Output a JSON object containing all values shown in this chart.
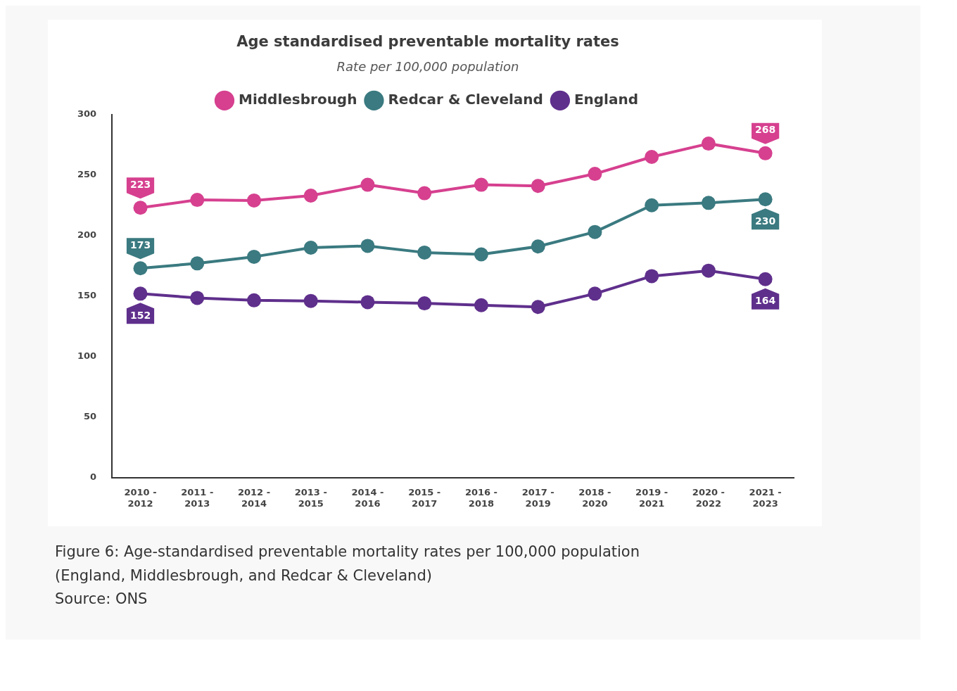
{
  "chart_data": {
    "type": "line",
    "title": "Age standardised preventable mortality rates",
    "subtitle": "Rate per 100,000 population",
    "categories": [
      "2010 - 2012",
      "2011 - 2013",
      "2012 - 2014",
      "2013 - 2015",
      "2014 - 2016",
      "2015 - 2017",
      "2016 - 2018",
      "2017 - 2019",
      "2018 - 2020",
      "2019 - 2021",
      "2020 - 2022",
      "2021 - 2023"
    ],
    "series": [
      {
        "name": "Middlesbrough",
        "color": "#d6408f",
        "values": [
          223,
          229.5,
          229,
          233,
          242,
          235,
          242,
          241,
          251,
          265,
          276,
          268
        ],
        "value_labels": [
          "223",
          null,
          null,
          null,
          null,
          null,
          null,
          null,
          null,
          null,
          null,
          "268"
        ]
      },
      {
        "name": "Redcar & Cleveland",
        "color": "#3a7a80",
        "values": [
          173,
          177,
          182.5,
          190,
          191.5,
          186,
          184.5,
          191,
          203,
          225,
          227,
          230
        ],
        "value_labels": [
          "173",
          null,
          null,
          null,
          null,
          null,
          null,
          null,
          null,
          null,
          null,
          "230"
        ]
      },
      {
        "name": "England",
        "color": "#5f2f8c",
        "values": [
          152,
          148.5,
          146.5,
          146,
          145,
          144,
          142.5,
          141,
          152,
          166.5,
          171,
          164
        ],
        "value_labels": [
          "152",
          null,
          null,
          null,
          null,
          null,
          null,
          null,
          null,
          null,
          null,
          "164"
        ]
      }
    ],
    "ylim": [
      0,
      300
    ],
    "yticks": [
      0,
      50,
      100,
      150,
      200,
      250,
      300
    ],
    "grid": false,
    "legend": "top",
    "marker": "circle",
    "line_style": "solid",
    "annotations": [
      "Figure 6: Age-standardised preventable mortality rates per 100,000 population (England, Middlesbrough, and Redcar & Cleveland)",
      "Source: ONS"
    ]
  }
}
